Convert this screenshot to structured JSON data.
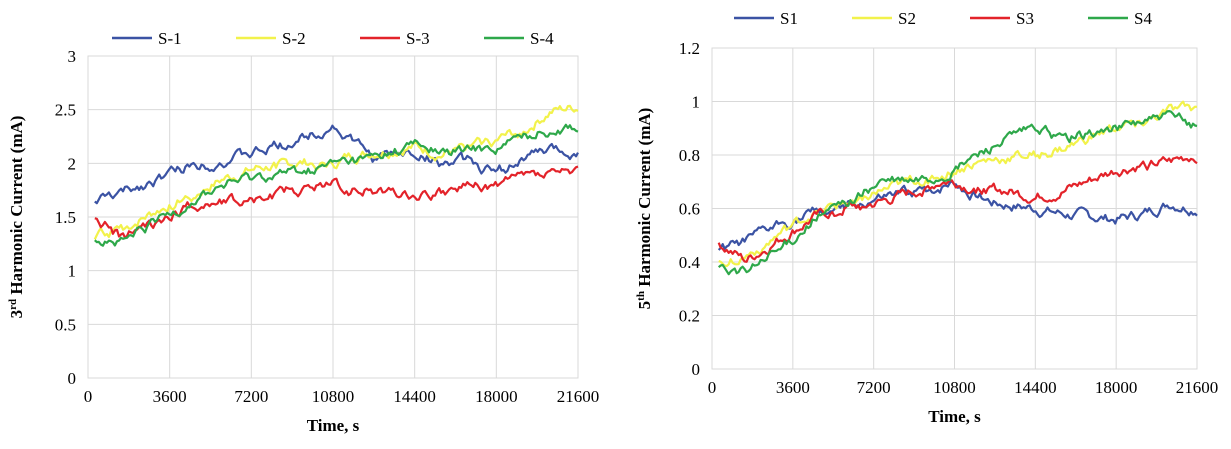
{
  "chart_data": [
    {
      "type": "line",
      "xlabel": "Time, s",
      "ylabel_main": "3",
      "ylabel_sup": "rd",
      "ylabel_rest": " Harmonic Current (mA)",
      "xlim": [
        0,
        21600
      ],
      "ylim": [
        0,
        3
      ],
      "x_ticks": [
        0,
        3600,
        7200,
        10800,
        14400,
        18000,
        21600
      ],
      "y_ticks": [
        0,
        0.5,
        1,
        1.5,
        2,
        2.5,
        3
      ],
      "x_tick_labels": [
        "0",
        "3600",
        "7200",
        "10800",
        "14400",
        "18000",
        "21600"
      ],
      "y_tick_labels": [
        "0",
        "0.5",
        "1",
        "1.5",
        "2",
        "2.5",
        "3"
      ],
      "grid": true,
      "legend_position": "top",
      "x": [
        300,
        1500,
        3000,
        4500,
        6000,
        7500,
        9000,
        10200,
        10800,
        11400,
        12600,
        14400,
        15600,
        16800,
        18000,
        19200,
        20400,
        21600
      ],
      "series": [
        {
          "name": "S-1",
          "color": "#3B53A4",
          "values": [
            1.65,
            1.72,
            1.85,
            1.98,
            2.02,
            2.1,
            2.2,
            2.3,
            2.35,
            2.25,
            2.05,
            2.1,
            2.0,
            2.02,
            1.9,
            2.05,
            2.12,
            2.1
          ]
        },
        {
          "name": "S-2",
          "color": "#F2F24B",
          "values": [
            1.3,
            1.38,
            1.55,
            1.7,
            1.85,
            1.95,
            2.0,
            2.0,
            1.98,
            2.05,
            2.1,
            2.15,
            2.08,
            2.15,
            2.22,
            2.3,
            2.48,
            2.52
          ]
        },
        {
          "name": "S-3",
          "color": "#E3232A",
          "values": [
            1.5,
            1.3,
            1.45,
            1.6,
            1.65,
            1.68,
            1.75,
            1.78,
            1.82,
            1.75,
            1.76,
            1.7,
            1.72,
            1.78,
            1.8,
            1.88,
            1.9,
            1.92
          ]
        },
        {
          "name": "S-4",
          "color": "#2EA84A",
          "values": [
            1.3,
            1.25,
            1.45,
            1.65,
            1.8,
            1.88,
            1.92,
            1.95,
            2.0,
            2.02,
            2.05,
            2.18,
            2.1,
            2.12,
            2.15,
            2.25,
            2.32,
            2.35
          ]
        }
      ]
    },
    {
      "type": "line",
      "xlabel": "Time, s",
      "ylabel_main": "5",
      "ylabel_sup": "th",
      "ylabel_rest": " Harmonic Current (mA)",
      "xlim": [
        0,
        21600
      ],
      "ylim": [
        0,
        1.2
      ],
      "x_ticks": [
        0,
        3600,
        7200,
        10800,
        14400,
        18000,
        21600
      ],
      "y_ticks": [
        0,
        0.2,
        0.4,
        0.6,
        0.8,
        1,
        1.2
      ],
      "x_tick_labels": [
        "0",
        "3600",
        "7200",
        "10800",
        "14400",
        "18000",
        "21600"
      ],
      "y_tick_labels": [
        "0",
        "0.2",
        "0.4",
        "0.6",
        "0.8",
        "1",
        "1.2"
      ],
      "grid": true,
      "legend_position": "top",
      "x": [
        300,
        1500,
        3000,
        4500,
        6000,
        7500,
        9000,
        10200,
        10800,
        11400,
        12600,
        14400,
        15600,
        16800,
        18000,
        19200,
        20400,
        21600
      ],
      "series": [
        {
          "name": "S1",
          "color": "#3B53A4",
          "values": [
            0.44,
            0.47,
            0.54,
            0.58,
            0.6,
            0.63,
            0.66,
            0.68,
            0.7,
            0.66,
            0.62,
            0.6,
            0.58,
            0.57,
            0.56,
            0.58,
            0.62,
            0.6
          ]
        },
        {
          "name": "S2",
          "color": "#F2F24B",
          "values": [
            0.4,
            0.42,
            0.5,
            0.58,
            0.62,
            0.66,
            0.7,
            0.72,
            0.74,
            0.76,
            0.78,
            0.8,
            0.82,
            0.86,
            0.9,
            0.92,
            0.96,
            0.97
          ]
        },
        {
          "name": "S3",
          "color": "#E3232A",
          "values": [
            0.47,
            0.4,
            0.48,
            0.56,
            0.6,
            0.62,
            0.66,
            0.7,
            0.7,
            0.68,
            0.67,
            0.64,
            0.66,
            0.7,
            0.74,
            0.76,
            0.77,
            0.8
          ]
        },
        {
          "name": "S4",
          "color": "#2EA84A",
          "values": [
            0.38,
            0.36,
            0.44,
            0.56,
            0.62,
            0.7,
            0.7,
            0.72,
            0.74,
            0.78,
            0.84,
            0.9,
            0.86,
            0.88,
            0.9,
            0.93,
            0.94,
            0.91
          ]
        }
      ]
    }
  ]
}
